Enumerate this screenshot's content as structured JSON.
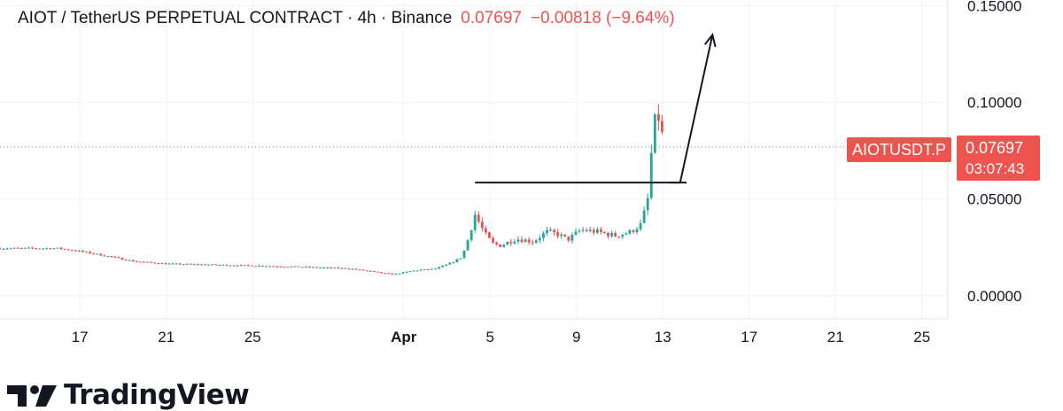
{
  "header": {
    "symbol_line": "AIOT / TetherUS PERPETUAL CONTRACT · 4h · Binance",
    "price": "0.07697",
    "change": "−0.00818 (−9.64%)"
  },
  "price_badge": {
    "ticker": "AIOTUSDT.P",
    "price": "0.07697",
    "countdown": "03:07:43"
  },
  "brand": {
    "name": "TradingView"
  },
  "colors": {
    "up": "#26a69a",
    "down": "#ef5350",
    "grid": "#f0f3fa",
    "text": "#131722"
  },
  "chart_data": {
    "type": "candlestick",
    "y_ticks": [
      "0.15000",
      "0.10000",
      "0.05000",
      "0.00000"
    ],
    "y_tick_values": [
      0.15,
      0.1,
      0.05,
      0.0
    ],
    "ylim": [
      -0.012,
      0.153
    ],
    "x_ticks": [
      "17",
      "21",
      "25",
      "Apr",
      "5",
      "9",
      "13",
      "17",
      "21",
      "25"
    ],
    "x_tick_days": [
      17,
      21,
      25,
      32,
      36,
      40,
      44,
      48,
      52,
      56
    ],
    "x_range_days": [
      13.3,
      57.2
    ],
    "last_price": 0.07697,
    "grid": true,
    "price_path": [
      [
        13.3,
        0.0245
      ],
      [
        16.0,
        0.0245
      ],
      [
        17.0,
        0.023
      ],
      [
        18.5,
        0.02
      ],
      [
        19.5,
        0.0178
      ],
      [
        21.0,
        0.0165
      ],
      [
        24.0,
        0.0158
      ],
      [
        27.0,
        0.015
      ],
      [
        29.5,
        0.014
      ],
      [
        30.5,
        0.0125
      ],
      [
        31.5,
        0.011
      ],
      [
        32.5,
        0.013
      ],
      [
        33.5,
        0.014
      ],
      [
        34.2,
        0.017
      ],
      [
        34.7,
        0.02
      ],
      [
        35.0,
        0.03
      ],
      [
        35.3,
        0.042
      ],
      [
        35.7,
        0.033
      ],
      [
        36.1,
        0.027
      ],
      [
        36.5,
        0.026
      ],
      [
        37.2,
        0.0295
      ],
      [
        38.0,
        0.028
      ],
      [
        38.6,
        0.033
      ],
      [
        39.1,
        0.032
      ],
      [
        39.6,
        0.029
      ],
      [
        40.2,
        0.034
      ],
      [
        41.0,
        0.033
      ],
      [
        41.8,
        0.031
      ],
      [
        42.5,
        0.033
      ],
      [
        43.0,
        0.037
      ],
      [
        43.3,
        0.05
      ],
      [
        43.5,
        0.078
      ],
      [
        43.7,
        0.096
      ],
      [
        43.9,
        0.088
      ],
      [
        44.05,
        0.077
      ]
    ],
    "annotations": {
      "support_line": {
        "from": [
          35.3,
          0.0585
        ],
        "to": [
          45.1,
          0.0585
        ]
      },
      "projection": [
        [
          44.3,
          0.0585
        ],
        [
          44.8,
          0.0585
        ],
        [
          46.3,
          0.135
        ]
      ]
    }
  }
}
